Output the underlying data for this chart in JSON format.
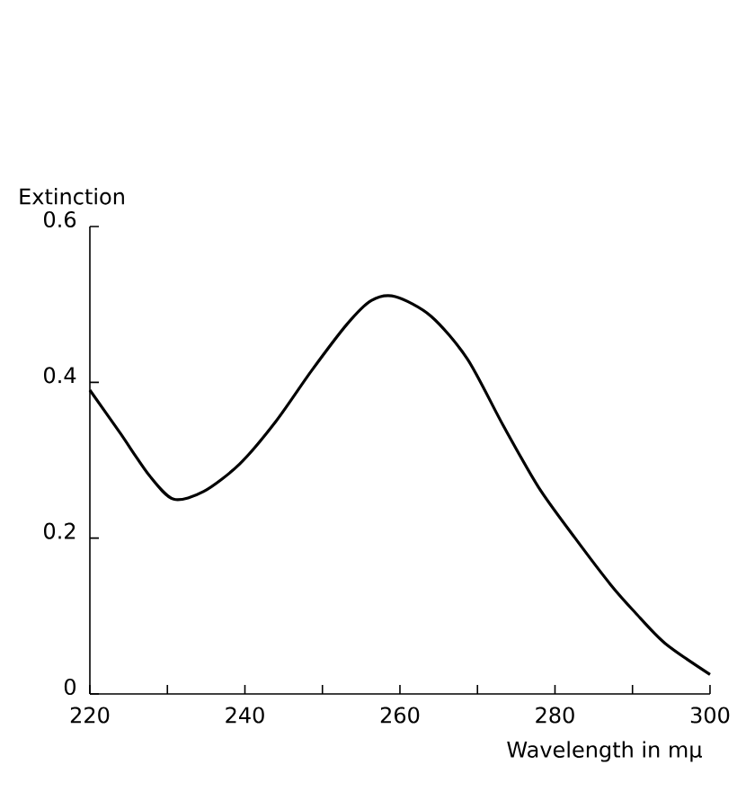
{
  "chart_data": {
    "type": "line",
    "xlabel": "Wavelength in mμ",
    "ylabel": "Extinction",
    "x": [
      220,
      223.9,
      227.7,
      230.8,
      234.7,
      239.3,
      244,
      248.6,
      253.2,
      256.3,
      259.4,
      264,
      268.7,
      273.3,
      277.9,
      282.6,
      287.2,
      290.3,
      294.2,
      300
    ],
    "series": [
      {
        "color": "#000000",
        "values": [
          0.39,
          0.335,
          0.28,
          0.25,
          0.26,
          0.295,
          0.35,
          0.415,
          0.475,
          0.505,
          0.51,
          0.485,
          0.43,
          0.345,
          0.265,
          0.2,
          0.14,
          0.105,
          0.065,
          0.025
        ]
      }
    ],
    "xlim": [
      220,
      300
    ],
    "ylim": [
      0,
      0.6
    ],
    "xticks": [
      220,
      {
        "value": 230,
        "label": null
      },
      240,
      {
        "value": 250,
        "label": null
      },
      260,
      {
        "value": 270,
        "label": null
      },
      280,
      {
        "value": 290,
        "label": null
      },
      300
    ],
    "yticks": [
      0,
      0.2,
      0.4,
      0.6
    ],
    "marker": "none",
    "line_style": "solid"
  }
}
